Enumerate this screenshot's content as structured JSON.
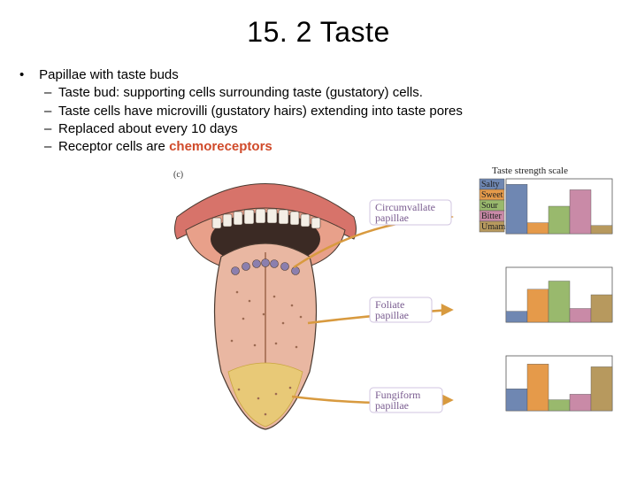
{
  "title": "15. 2 Taste",
  "bullets": {
    "main": "Papillae with taste buds",
    "subs": [
      "Taste bud: supporting cells surrounding taste (gustatory) cells.",
      "Taste cells have microvilli (gustatory hairs) extending into taste pores",
      "Replaced about every 10 days",
      "Receptor cells are "
    ],
    "highlight": "chemoreceptors",
    "highlight_color": "#d04a2a"
  },
  "figure": {
    "caption": "(c)",
    "labels": {
      "circumvallate": "Circumvallate papillae",
      "foliate": "Foliate papillae",
      "fungiform": "Fungiform papillae"
    },
    "scale_title": "Taste strength scale",
    "tastes": [
      {
        "name": "Salty",
        "color": "#6f87b2"
      },
      {
        "name": "Sweet",
        "color": "#e59a4a"
      },
      {
        "name": "Sour",
        "color": "#99b96d"
      },
      {
        "name": "Bitter",
        "color": "#c98aa7"
      },
      {
        "name": "Umami",
        "color": "#b7995e"
      }
    ],
    "charts": [
      {
        "bars": [
          0.9,
          0.2,
          0.5,
          0.8,
          0.15
        ]
      },
      {
        "bars": [
          0.2,
          0.6,
          0.75,
          0.25,
          0.5
        ]
      },
      {
        "bars": [
          0.4,
          0.85,
          0.2,
          0.3,
          0.8
        ]
      }
    ],
    "colors": {
      "lips": "#d7736a",
      "palate": "#e8a08a",
      "tongue_top": "#e9b7a2",
      "tongue_tip": "#e8c977",
      "circumvallate": "#8b7fae",
      "outline": "#4a3a30",
      "arrow": "#d89a3f",
      "chart_border": "#555555"
    }
  }
}
